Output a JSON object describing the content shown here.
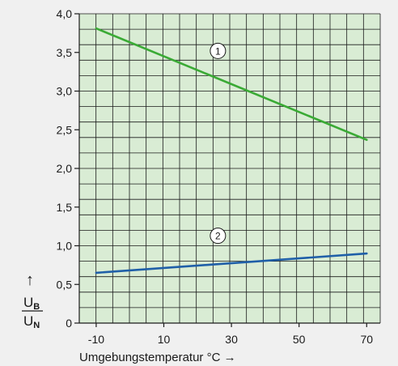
{
  "chart_data": {
    "type": "line",
    "x": [
      -10,
      70
    ],
    "series": [
      {
        "values": [
          3.81,
          2.37
        ],
        "color": "#3aaa35",
        "marker": "1"
      },
      {
        "values": [
          0.65,
          0.9
        ],
        "color": "#1f5fa8",
        "marker": "2"
      }
    ],
    "markers": [
      {
        "label": "1",
        "x": 26,
        "y": 3.52
      },
      {
        "label": "2",
        "x": 26,
        "y": 1.13
      }
    ],
    "xlim": [
      -15,
      74
    ],
    "ylim": [
      0,
      4.0
    ],
    "xticks": [
      -10,
      10,
      30,
      50,
      70
    ],
    "xtick_labels": [
      "-10",
      "10",
      "30",
      "50",
      "70"
    ],
    "yticks": [
      0,
      0.5,
      1.0,
      1.5,
      2.0,
      2.5,
      3.0,
      3.5,
      4.0
    ],
    "ytick_labels": [
      "0",
      "0,5",
      "1,0",
      "1,5",
      "2,0",
      "2,5",
      "3,0",
      "3,5",
      "4,0"
    ],
    "xlabel": "Umgebungstemperatur °C →",
    "ylabel_top": "U",
    "ylabel_top_sub": "B",
    "ylabel_bottom": "U",
    "ylabel_bottom_sub": "N",
    "ylabel_arrow": "↑",
    "grid": true,
    "plot_background": "#d9ecd4",
    "grid_color": "#1a1a1a"
  }
}
